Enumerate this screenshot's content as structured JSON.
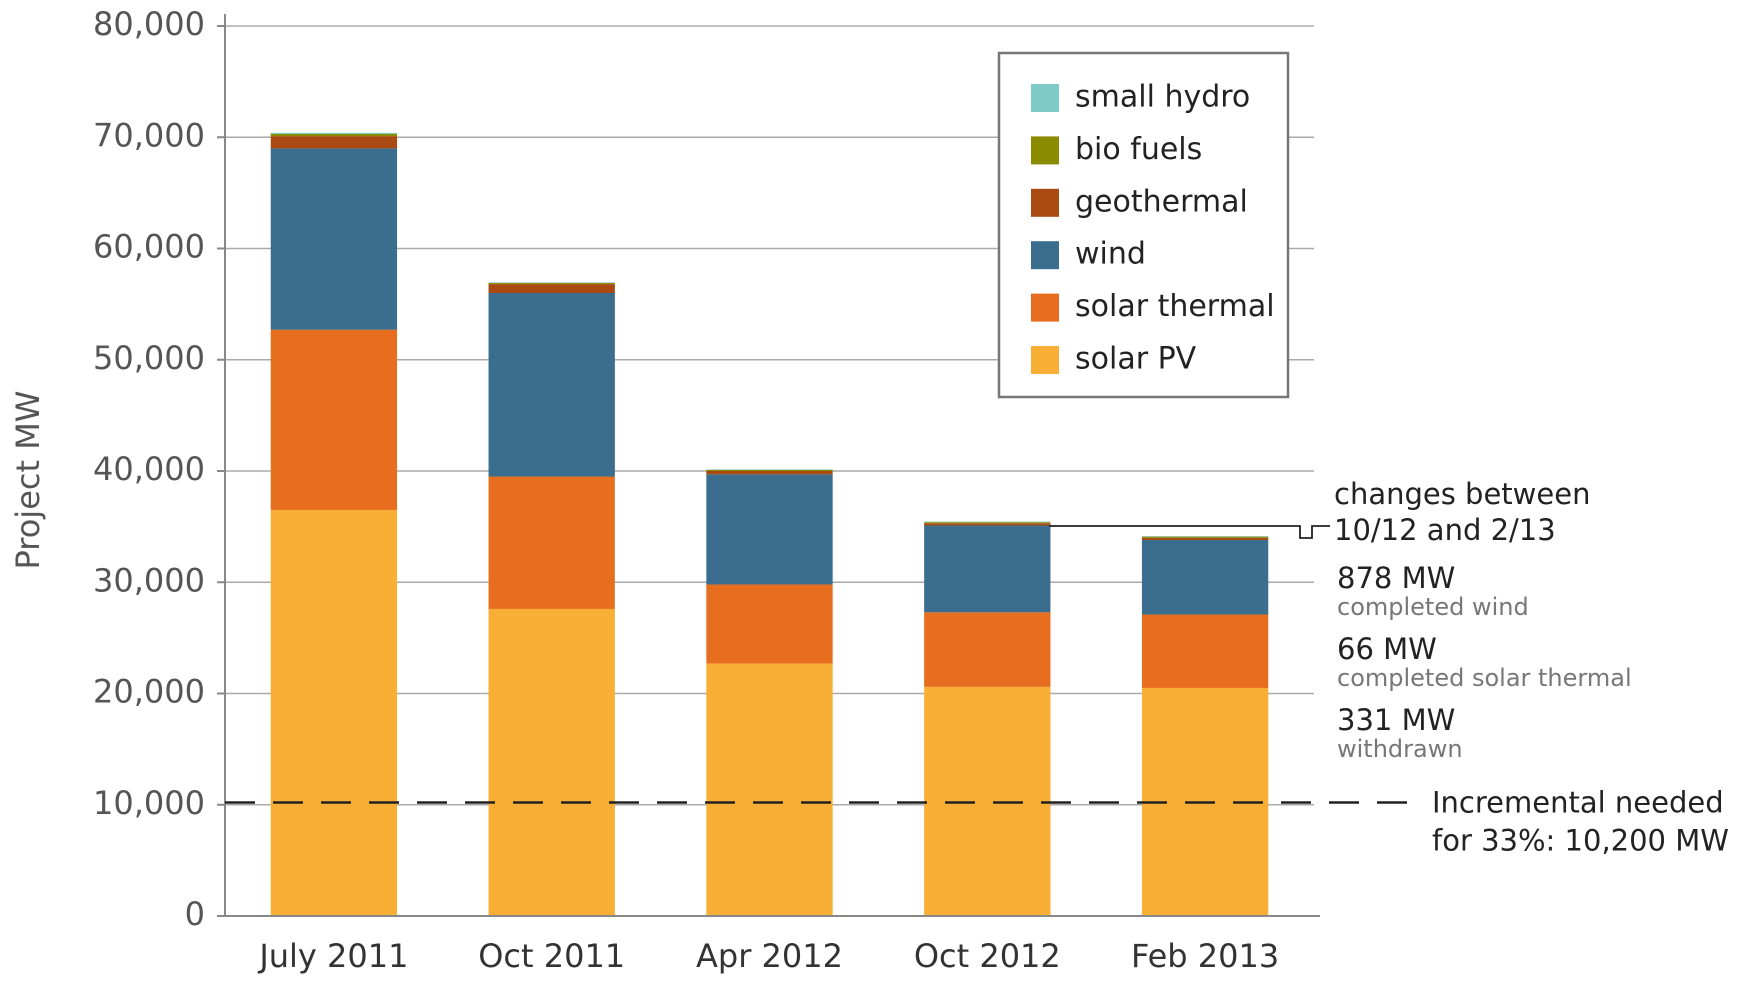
{
  "chart_data": {
    "type": "stacked_bar",
    "y_axis_label": "Project MW",
    "categories": [
      "July 2011",
      "Oct 2011",
      "Apr 2012",
      "Oct 2012",
      "Feb 2013"
    ],
    "series": [
      {
        "name": "solar PV",
        "color": "#f9ae35",
        "values": [
          36500,
          27600,
          22700,
          20600,
          20500
        ]
      },
      {
        "name": "solar thermal",
        "color": "#e86e1f",
        "values": [
          16200,
          11900,
          7100,
          6700,
          6600
        ]
      },
      {
        "name": "wind",
        "color": "#3a6d8e",
        "values": [
          16300,
          16500,
          9900,
          7800,
          6700
        ]
      },
      {
        "name": "geothermal",
        "color": "#a84a12",
        "values": [
          1100,
          800,
          300,
          200,
          200
        ]
      },
      {
        "name": "bio fuels",
        "color": "#8b8b00",
        "values": [
          200,
          100,
          100,
          100,
          100
        ]
      },
      {
        "name": "small hydro",
        "color": "#7dcac6",
        "values": [
          100,
          50,
          50,
          50,
          50
        ]
      }
    ],
    "ylim": [
      0,
      80000
    ],
    "yticks": [
      0,
      {
        "value": 10000,
        "label": "10,000"
      },
      {
        "value": 20000,
        "label": "20,000"
      },
      {
        "value": 30000,
        "label": "30,000"
      },
      {
        "value": 40000,
        "label": "40,000"
      },
      {
        "value": 50000,
        "label": "50,000"
      },
      {
        "value": 60000,
        "label": "60,000"
      },
      {
        "value": 70000,
        "label": "70,000"
      },
      {
        "value": 80000,
        "label": "80,000"
      }
    ],
    "grid": true,
    "legend": "top-right",
    "reference_line": {
      "value": 10200,
      "label_lines": [
        "Incremental needed",
        "for 33%: 10,200 MW"
      ]
    },
    "annotations": {
      "header": [
        "changes between",
        "10/12 and 2/13"
      ],
      "items": [
        {
          "label": "878 MW",
          "note": "completed wind"
        },
        {
          "label": "66 MW",
          "note": "completed solar thermal"
        },
        {
          "label": "331 MW",
          "note": "withdrawn"
        }
      ]
    }
  }
}
